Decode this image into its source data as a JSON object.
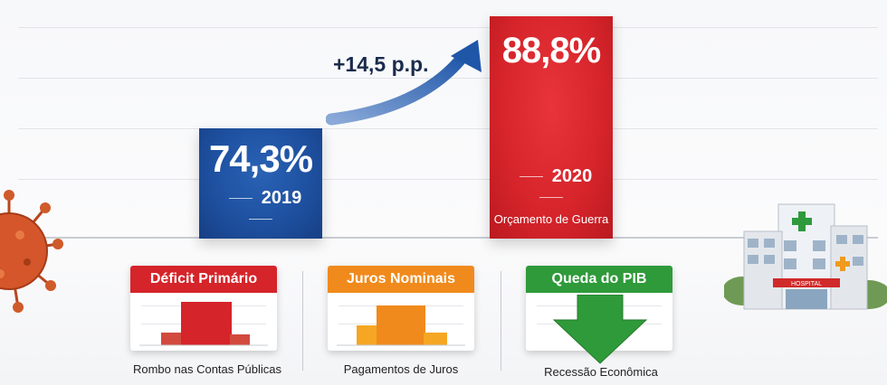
{
  "chart_data": {
    "type": "bar",
    "categories": [
      "2019",
      "2020"
    ],
    "values": [
      74.3,
      88.8
    ],
    "value_labels": [
      "74,3%",
      "88,8%"
    ],
    "subtitles": [
      "",
      "Orçamento de Guerra"
    ],
    "colors": [
      "#1e50a0",
      "#d7262c"
    ],
    "annotation": "+14,5 p.p.",
    "ylim": [
      60,
      90
    ]
  },
  "factors": [
    {
      "title": "Déficit Primário",
      "caption": "Rombo nas Contas Públicas",
      "color": "#d5242a",
      "icon": "bar-chart-icon"
    },
    {
      "title": "Juros Nominais",
      "caption": "Pagamentos de Juros",
      "color": "#f08a1c",
      "icon": "bar-chart-icon"
    },
    {
      "title": "Queda do PIB",
      "caption": "Recessão Econômica",
      "color": "#2f9a3a",
      "icon": "down-arrow-icon"
    }
  ],
  "decor": {
    "hospital_sign": "HOSPITAL",
    "left_icon": "coronavirus-icon",
    "right_icon": "hospital-icon"
  }
}
